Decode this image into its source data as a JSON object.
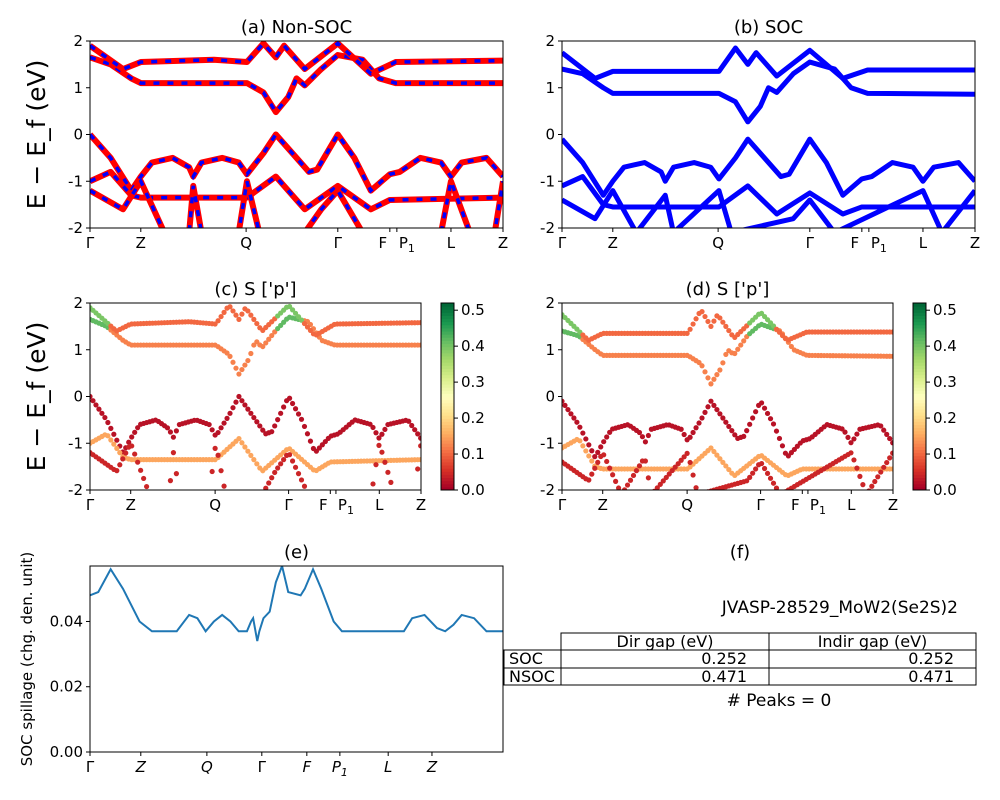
{
  "chart_data": [
    {
      "id": "a",
      "type": "line",
      "title": "(a) Non-SOC",
      "ylabel": "E − E_f (eV)",
      "ylim": [
        -2,
        2
      ],
      "yticks": [
        -2,
        -1,
        0,
        1,
        2
      ],
      "xticks": [
        {
          "k": 0,
          "label": "Γ"
        },
        {
          "k": 12.3,
          "label": "Z"
        },
        {
          "k": 37.8,
          "label": "Q"
        },
        {
          "k": 60,
          "label": "Γ"
        },
        {
          "k": 72.6,
          "label": "F"
        },
        {
          "k": 74.3,
          "label": "P1"
        },
        {
          "k": 87.4,
          "label": "L"
        },
        {
          "k": 100,
          "label": "Z"
        }
      ],
      "colors": {
        "line": "#ff0000",
        "dash": "#0000ff"
      },
      "bands": [
        [
          [
            0,
            1.65
          ],
          [
            5,
            1.5
          ],
          [
            10,
            1.2
          ],
          [
            12.3,
            1.1
          ],
          [
            30,
            1.1
          ],
          [
            38,
            1.1
          ],
          [
            42,
            0.9
          ],
          [
            45,
            0.48
          ],
          [
            48,
            0.8
          ],
          [
            50,
            1.2
          ],
          [
            52,
            1.05
          ],
          [
            56,
            1.4
          ],
          [
            60,
            1.7
          ],
          [
            66,
            1.6
          ],
          [
            70,
            1.2
          ],
          [
            74,
            1.1
          ],
          [
            100,
            1.1
          ]
        ],
        [
          [
            0,
            1.9
          ],
          [
            8,
            1.4
          ],
          [
            12.3,
            1.55
          ],
          [
            30,
            1.6
          ],
          [
            38,
            1.55
          ],
          [
            42,
            1.95
          ],
          [
            45,
            1.65
          ],
          [
            47,
            1.9
          ],
          [
            52,
            1.4
          ],
          [
            60,
            1.95
          ],
          [
            68,
            1.3
          ],
          [
            74,
            1.55
          ],
          [
            100,
            1.58
          ]
        ],
        [
          [
            0,
            0
          ],
          [
            5,
            -0.5
          ],
          [
            10,
            -1.2
          ],
          [
            12.3,
            -0.9
          ],
          [
            15,
            -0.6
          ],
          [
            20,
            -0.5
          ],
          [
            24,
            -0.7
          ],
          [
            25,
            -0.9
          ],
          [
            27,
            -0.6
          ],
          [
            32,
            -0.5
          ],
          [
            36,
            -0.6
          ],
          [
            38,
            -0.85
          ],
          [
            42,
            -0.4
          ],
          [
            45,
            0
          ],
          [
            48,
            -0.3
          ],
          [
            53,
            -0.8
          ],
          [
            55,
            -0.75
          ],
          [
            60,
            0
          ],
          [
            64,
            -0.5
          ],
          [
            68,
            -1.2
          ],
          [
            72.6,
            -0.85
          ],
          [
            75,
            -0.8
          ],
          [
            80,
            -0.5
          ],
          [
            85,
            -0.6
          ],
          [
            87.4,
            -0.9
          ],
          [
            90,
            -0.6
          ],
          [
            96,
            -0.5
          ],
          [
            100,
            -0.9
          ]
        ],
        [
          [
            0,
            -1
          ],
          [
            5,
            -0.8
          ],
          [
            10,
            -1.3
          ],
          [
            12.3,
            -1.35
          ],
          [
            38,
            -1.35
          ],
          [
            45,
            -0.9
          ],
          [
            52,
            -1.6
          ],
          [
            60,
            -1.1
          ],
          [
            68,
            -1.6
          ],
          [
            72.6,
            -1.4
          ],
          [
            100,
            -1.35
          ]
        ],
        [
          [
            0,
            -1.2
          ],
          [
            8,
            -1.6
          ],
          [
            12.3,
            -1.0
          ],
          [
            18,
            -2.1
          ],
          [
            24,
            -2.1
          ],
          [
            25,
            -1.1
          ],
          [
            27,
            -2.1
          ],
          [
            36,
            -2.1
          ],
          [
            38,
            -1.0
          ],
          [
            41,
            -2.1
          ],
          [
            52,
            -2.1
          ],
          [
            56,
            -1.6
          ],
          [
            60,
            -1.2
          ],
          [
            66,
            -2.1
          ],
          [
            78,
            -2.1
          ],
          [
            85,
            -2.1
          ],
          [
            87.4,
            -1.0
          ],
          [
            92,
            -2.1
          ],
          [
            98,
            -2.1
          ],
          [
            100,
            -1.0
          ]
        ]
      ]
    },
    {
      "id": "b",
      "type": "line",
      "title": "(b) SOC",
      "ylim": [
        -2,
        2
      ],
      "yticks": [
        -2,
        -1,
        0,
        1,
        2
      ],
      "xticks": [
        {
          "k": 0,
          "label": "Γ"
        },
        {
          "k": 12.3,
          "label": "Z"
        },
        {
          "k": 37.8,
          "label": "Q"
        },
        {
          "k": 60,
          "label": "Γ"
        },
        {
          "k": 72.6,
          "label": "F"
        },
        {
          "k": 74.3,
          "label": "P1"
        },
        {
          "k": 87.4,
          "label": "L"
        },
        {
          "k": 100,
          "label": "Z"
        }
      ],
      "colors": {
        "line": "#0000ff"
      },
      "bands": [
        [
          [
            0,
            1.4
          ],
          [
            5,
            1.3
          ],
          [
            10,
            1.0
          ],
          [
            12.3,
            0.88
          ],
          [
            38,
            0.88
          ],
          [
            42,
            0.7
          ],
          [
            45,
            0.27
          ],
          [
            48,
            0.6
          ],
          [
            50,
            1.0
          ],
          [
            52,
            0.9
          ],
          [
            56,
            1.3
          ],
          [
            60,
            1.55
          ],
          [
            66,
            1.4
          ],
          [
            70,
            1.0
          ],
          [
            74,
            0.88
          ],
          [
            100,
            0.86
          ]
        ],
        [
          [
            0,
            1.75
          ],
          [
            8,
            1.2
          ],
          [
            12.3,
            1.35
          ],
          [
            38,
            1.35
          ],
          [
            42,
            1.85
          ],
          [
            45,
            1.5
          ],
          [
            47,
            1.75
          ],
          [
            52,
            1.25
          ],
          [
            60,
            1.8
          ],
          [
            68,
            1.2
          ],
          [
            74,
            1.38
          ],
          [
            100,
            1.38
          ]
        ],
        [
          [
            0,
            -0.1
          ],
          [
            5,
            -0.6
          ],
          [
            10,
            -1.3
          ],
          [
            12.3,
            -1.0
          ],
          [
            15,
            -0.7
          ],
          [
            20,
            -0.6
          ],
          [
            24,
            -0.8
          ],
          [
            25,
            -1.0
          ],
          [
            27,
            -0.7
          ],
          [
            32,
            -0.6
          ],
          [
            36,
            -0.7
          ],
          [
            38,
            -0.95
          ],
          [
            42,
            -0.5
          ],
          [
            45,
            -0.1
          ],
          [
            48,
            -0.4
          ],
          [
            53,
            -0.9
          ],
          [
            55,
            -0.85
          ],
          [
            60,
            -0.1
          ],
          [
            64,
            -0.6
          ],
          [
            68,
            -1.3
          ],
          [
            72.6,
            -0.95
          ],
          [
            75,
            -0.9
          ],
          [
            80,
            -0.6
          ],
          [
            85,
            -0.7
          ],
          [
            87.4,
            -1.0
          ],
          [
            90,
            -0.7
          ],
          [
            96,
            -0.6
          ],
          [
            100,
            -1.0
          ]
        ],
        [
          [
            0,
            -1.1
          ],
          [
            5,
            -0.9
          ],
          [
            10,
            -1.5
          ],
          [
            12.3,
            -1.55
          ],
          [
            38,
            -1.55
          ],
          [
            45,
            -1.1
          ],
          [
            52,
            -1.7
          ],
          [
            60,
            -1.25
          ],
          [
            68,
            -1.7
          ],
          [
            72.6,
            -1.55
          ],
          [
            100,
            -1.55
          ]
        ],
        [
          [
            0,
            -1.4
          ],
          [
            8,
            -1.8
          ],
          [
            12.3,
            -1.2
          ],
          [
            18,
            -2.1
          ],
          [
            25,
            -1.3
          ],
          [
            27,
            -2.1
          ],
          [
            38,
            -1.2
          ],
          [
            41,
            -2.1
          ],
          [
            56,
            -1.8
          ],
          [
            60,
            -1.4
          ],
          [
            66,
            -2.1
          ],
          [
            87.4,
            -1.2
          ],
          [
            92,
            -2.1
          ],
          [
            100,
            -1.2
          ]
        ]
      ]
    },
    {
      "id": "c",
      "type": "scatter",
      "title": "(c)  S ['p']",
      "ylabel": "E − E_f (eV)",
      "ylim": [
        -2,
        2
      ],
      "yticks": [
        -2,
        -1,
        0,
        1,
        2
      ],
      "xticks": [
        {
          "k": 0,
          "label": "Γ"
        },
        {
          "k": 12.3,
          "label": "Z"
        },
        {
          "k": 37.8,
          "label": "Q"
        },
        {
          "k": 60,
          "label": "Γ"
        },
        {
          "k": 72.6,
          "label": "F"
        },
        {
          "k": 74.3,
          "label": "P1"
        },
        {
          "k": 87.4,
          "label": "L"
        },
        {
          "k": 100,
          "label": "Z"
        }
      ],
      "colorbar": {
        "colormap": "RdYlGn",
        "range": [
          0,
          0.52
        ],
        "ticks": [
          0.0,
          0.1,
          0.2,
          0.3,
          0.4,
          0.5
        ]
      },
      "band_weights": [
        0.12,
        0.1,
        0.02,
        0.15,
        0.04
      ]
    },
    {
      "id": "d",
      "type": "scatter",
      "title": "(d) S ['p']",
      "ylim": [
        -2,
        2
      ],
      "yticks": [
        -2,
        -1,
        0,
        1,
        2
      ],
      "xticks": [
        {
          "k": 0,
          "label": "Γ"
        },
        {
          "k": 12.3,
          "label": "Z"
        },
        {
          "k": 37.8,
          "label": "Q"
        },
        {
          "k": 60,
          "label": "Γ"
        },
        {
          "k": 72.6,
          "label": "F"
        },
        {
          "k": 74.3,
          "label": "P1"
        },
        {
          "k": 87.4,
          "label": "L"
        },
        {
          "k": 100,
          "label": "Z"
        }
      ],
      "colorbar": {
        "colormap": "RdYlGn",
        "range": [
          0,
          0.52
        ],
        "ticks": [
          0.0,
          0.1,
          0.2,
          0.3,
          0.4,
          0.5
        ]
      },
      "band_weights": [
        0.12,
        0.1,
        0.02,
        0.15,
        0.04
      ]
    },
    {
      "id": "e",
      "type": "line",
      "title": "(e)",
      "ylabel": "SOC spillage (chg. den. unit)",
      "ylim": [
        0,
        0.057
      ],
      "yticks": [
        0.0,
        0.02,
        0.04
      ],
      "xticks": [
        {
          "k": 0,
          "label": "Γ"
        },
        {
          "k": 12.3,
          "label": "Z"
        },
        {
          "k": 28.3,
          "label": "Q"
        },
        {
          "k": 41.6,
          "label": "Γ"
        },
        {
          "k": 52.5,
          "label": "F"
        },
        {
          "k": 60.5,
          "label": "P1"
        },
        {
          "k": 72.2,
          "label": "L"
        },
        {
          "k": 82.8,
          "label": "Z"
        }
      ],
      "colors": {
        "line": "#1f77b4"
      },
      "points": [
        [
          0,
          0.048
        ],
        [
          2,
          0.049
        ],
        [
          5,
          0.056
        ],
        [
          8,
          0.05
        ],
        [
          12,
          0.04
        ],
        [
          15,
          0.037
        ],
        [
          21,
          0.037
        ],
        [
          24,
          0.042
        ],
        [
          26,
          0.041
        ],
        [
          28,
          0.037
        ],
        [
          30,
          0.04
        ],
        [
          32,
          0.042
        ],
        [
          34,
          0.04
        ],
        [
          36,
          0.037
        ],
        [
          38,
          0.037
        ],
        [
          39,
          0.04
        ],
        [
          39.5,
          0.041
        ],
        [
          40.5,
          0.034
        ],
        [
          41,
          0.037
        ],
        [
          42,
          0.041
        ],
        [
          43.5,
          0.043
        ],
        [
          45,
          0.052
        ],
        [
          46.5,
          0.057
        ],
        [
          48,
          0.049
        ],
        [
          51,
          0.048
        ],
        [
          52,
          0.05
        ],
        [
          54,
          0.056
        ],
        [
          56,
          0.05
        ],
        [
          59,
          0.04
        ],
        [
          61,
          0.037
        ],
        [
          76,
          0.037
        ],
        [
          78,
          0.041
        ],
        [
          81,
          0.042
        ],
        [
          84,
          0.038
        ],
        [
          86,
          0.037
        ],
        [
          88,
          0.039
        ],
        [
          90,
          0.042
        ],
        [
          93,
          0.041
        ],
        [
          96,
          0.037
        ],
        [
          100,
          0.037
        ]
      ]
    }
  ],
  "panel_f": {
    "title": "(f)",
    "material": "JVASP-28529_MoW2(Se2S)2",
    "table": {
      "headers": [
        "",
        "Dir gap (eV)",
        "Indir gap (eV)"
      ],
      "rows": [
        [
          "SOC",
          "0.252",
          "0.252"
        ],
        [
          "NSOC",
          "0.471",
          "0.471"
        ]
      ]
    },
    "peaks": "# Peaks = 0"
  }
}
